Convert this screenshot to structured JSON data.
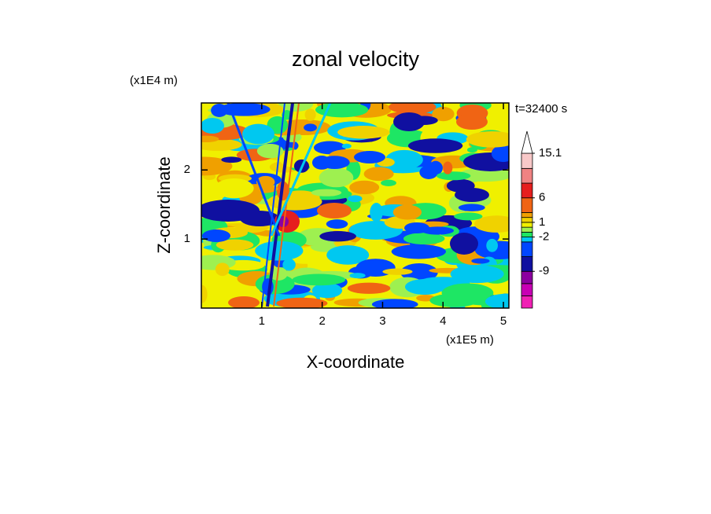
{
  "chart_data": {
    "type": "contour",
    "title": "zonal velocity",
    "x_label": "X-coordinate",
    "y_label": "Z-coordinate",
    "x_unit": "(x1E5 m)",
    "y_unit": "(x1E4 m)",
    "time_label": "t=32400 s",
    "xlim": [
      0,
      5.09
    ],
    "xticks": [
      1,
      2,
      3,
      4,
      5
    ],
    "ylim": [
      0,
      2.97
    ],
    "yticks": [
      1,
      2
    ],
    "colorbar": {
      "levels": [
        -16.5,
        -14,
        -11.5,
        -9,
        -6,
        -3,
        -2,
        -1,
        0,
        1,
        2,
        3,
        6,
        9,
        12,
        15.1
      ],
      "colors": [
        "#f020b4",
        "#c800b4",
        "#8c00a0",
        "#1010a0",
        "#0046ff",
        "#00c8f0",
        "#1ee664",
        "#9ef050",
        "#f0f000",
        "#f0d200",
        "#f0a000",
        "#f06414",
        "#e61e1e",
        "#f08282",
        "#f8c8c8"
      ],
      "ticks": [
        -9,
        -2,
        1,
        6,
        15.1
      ],
      "over_color": "#ffffff"
    }
  }
}
